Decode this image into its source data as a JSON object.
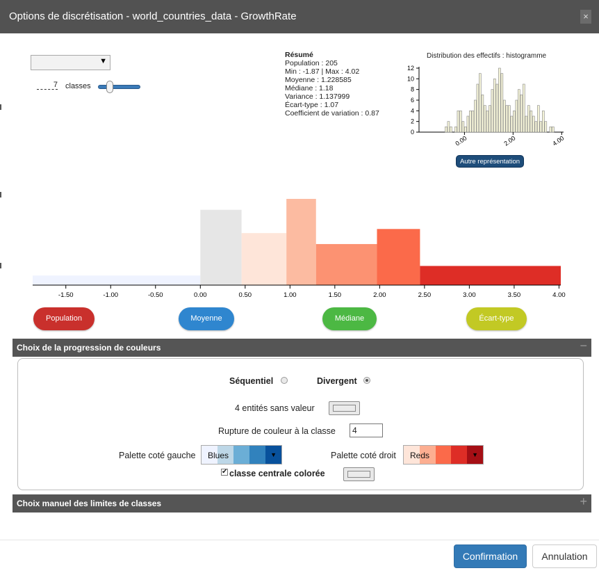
{
  "dialog": {
    "title": "Options de discrétisation - world_countries_data - GrowthRate",
    "close_label": "×"
  },
  "controls": {
    "method_select_value": "",
    "nb_classes": "7",
    "classes_label": "classes",
    "nb_classes_slider_position": 0.2
  },
  "summary": {
    "title": "Résumé",
    "lines": [
      "Population : 205",
      "Min : -1.87 | Max : 4.02",
      "Moyenne : 1.228585",
      "Médiane : 1.18",
      "Variance : 1.137999",
      "Écart-type : 1.07",
      "Coefficient de variation : 0.87"
    ]
  },
  "histogram": {
    "title": "Distribution des effectifs : histogramme",
    "autre_button": "Autre représentation"
  },
  "stat_buttons": {
    "population": "Population",
    "moyenne": "Moyenne",
    "mediane": "Médiane",
    "ecart_type": "Écart-type"
  },
  "colors": {
    "population_btn": "#c9302c",
    "moyenne_btn": "#2f86cf",
    "mediane_btn": "#4cb843",
    "ecart_type_btn": "#c2c924",
    "header": "#525252",
    "section_bar": "#555555",
    "primary": "#337ab7"
  },
  "section1": {
    "title": "Choix de la progression de couleurs",
    "toggle": "−",
    "sequential_label": "Séquentiel",
    "divergent_label": "Divergent",
    "selected_mode": "Divergent",
    "no_value_label": "4 entités sans valeur",
    "break_label": "Rupture de couleur à la classe",
    "break_value": "4",
    "palette_left_label": "Palette coté gauche",
    "palette_left_name": "Blues",
    "palette_left_colors": [
      "#eff3ff",
      "#bdd7e7",
      "#6baed6",
      "#3182bd",
      "#08519c"
    ],
    "palette_right_label": "Palette coté droit",
    "palette_right_name": "Reds",
    "palette_right_colors": [
      "#fee5d9",
      "#fcae91",
      "#fb6a4a",
      "#de2d26",
      "#a50f15"
    ],
    "central_class_label": "classe centrale colorée",
    "central_class_checked": "✔"
  },
  "section2": {
    "title": "Choix manuel des limites de classes",
    "toggle": "+"
  },
  "footer": {
    "confirm": "Confirmation",
    "cancel": "Annulation"
  },
  "chart_data": [
    {
      "type": "bar",
      "title": "Distribution des effectifs : histogramme",
      "xlabel": "",
      "ylabel": "",
      "ylim": [
        0,
        12
      ],
      "xlim": [
        -1.87,
        4.02
      ],
      "x_ticks": [
        "0.00",
        "2.00",
        "4.00"
      ],
      "y_ticks": [
        "0",
        "2",
        "4",
        "6",
        "8",
        "10",
        "12"
      ],
      "x": [
        -0.8,
        -0.7,
        -0.6,
        -0.4,
        -0.3,
        -0.2,
        -0.1,
        0.0,
        0.1,
        0.2,
        0.3,
        0.4,
        0.5,
        0.6,
        0.7,
        0.8,
        0.9,
        1.0,
        1.1,
        1.2,
        1.3,
        1.4,
        1.5,
        1.6,
        1.7,
        1.8,
        1.9,
        2.0,
        2.1,
        2.2,
        2.3,
        2.4,
        2.5,
        2.6,
        2.7,
        2.8,
        2.9,
        3.0,
        3.1,
        3.2,
        3.3,
        3.5,
        3.6
      ],
      "values": [
        1,
        2,
        1,
        1,
        4,
        4,
        2,
        1,
        3,
        4,
        4,
        6,
        9,
        11,
        7,
        5,
        4,
        5,
        8,
        10,
        9,
        12,
        11,
        6,
        5,
        5,
        3,
        4,
        6,
        8,
        7,
        9,
        3,
        5,
        4,
        3,
        2,
        5,
        2,
        4,
        2,
        1,
        1
      ]
    },
    {
      "type": "bar",
      "title": "",
      "xlabel": "",
      "ylabel": "",
      "x_ticks": [
        "-1.50",
        "-1.00",
        "-0.50",
        "0.00",
        "0.50",
        "1.00",
        "1.50",
        "2.00",
        "2.50",
        "3.00",
        "3.50",
        "4.00"
      ],
      "breaks": [
        -1.87,
        0.0,
        0.46,
        0.96,
        1.29,
        1.97,
        2.45,
        4.02
      ],
      "densities": [
        0.07,
        0.55,
        0.38,
        0.63,
        0.3,
        0.41,
        0.14
      ],
      "colors": [
        "#eff3ff",
        "#e6e6e6",
        "#fee5d9",
        "#fcbba1",
        "#fc9272",
        "#fb6a4a",
        "#de2d26"
      ]
    }
  ]
}
